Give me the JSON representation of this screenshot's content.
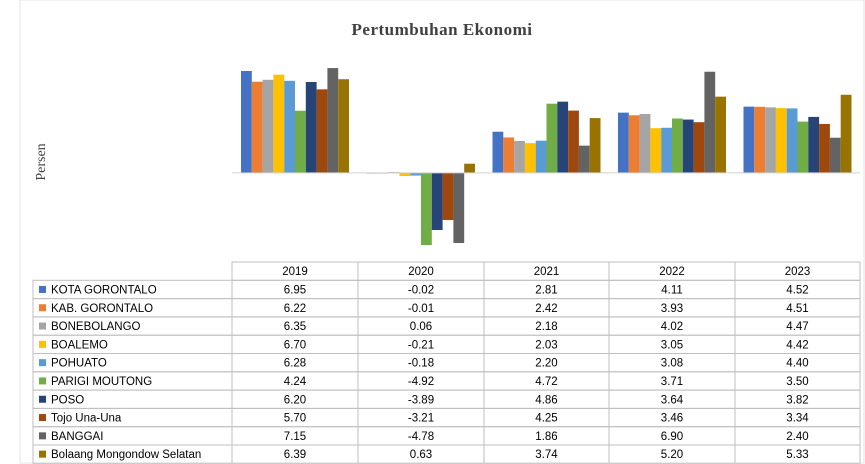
{
  "chart_data": {
    "type": "bar",
    "title": "Pertumbuhan Ekonomi",
    "y_label": "Persen",
    "categories": [
      "2019",
      "2020",
      "2021",
      "2022",
      "2023"
    ],
    "ylim": [
      -5.8,
      7.7
    ],
    "series": [
      {
        "name": "KOTA GORONTALO",
        "color": "#4472c4",
        "values": [
          6.95,
          -0.02,
          2.81,
          4.11,
          4.52
        ],
        "value_labels": [
          "6.95",
          "-0.02",
          "2.81",
          "4.11",
          "4.52"
        ]
      },
      {
        "name": "KAB. GORONTALO",
        "color": "#ed7d31",
        "values": [
          6.22,
          -0.01,
          2.42,
          3.93,
          4.51
        ],
        "value_labels": [
          "6.22",
          "-0.01",
          "2.42",
          "3.93",
          "4.51"
        ]
      },
      {
        "name": "BONEBOLANGO",
        "color": "#a5a5a5",
        "values": [
          6.35,
          0.06,
          2.18,
          4.02,
          4.47
        ],
        "value_labels": [
          "6.35",
          "0.06",
          "2.18",
          "4.02",
          "4.47"
        ]
      },
      {
        "name": "BOALEMO",
        "color": "#ffc000",
        "values": [
          6.7,
          -0.21,
          2.03,
          3.05,
          4.42
        ],
        "value_labels": [
          "6.70",
          "-0.21",
          "2.03",
          "3.05",
          "4.42"
        ]
      },
      {
        "name": "POHUATO",
        "color": "#5b9bd5",
        "values": [
          6.28,
          -0.18,
          2.2,
          3.08,
          4.4
        ],
        "value_labels": [
          "6.28",
          "-0.18",
          "2.20",
          "3.08",
          "4.40"
        ]
      },
      {
        "name": "PARIGI MOUTONG",
        "color": "#70ad47",
        "values": [
          4.24,
          -4.92,
          4.72,
          3.71,
          3.5
        ],
        "value_labels": [
          "4.24",
          "-4.92",
          "4.72",
          "3.71",
          "3.50"
        ]
      },
      {
        "name": "POSO",
        "color": "#264478",
        "values": [
          6.2,
          -3.89,
          4.86,
          3.64,
          3.82
        ],
        "value_labels": [
          "6.20",
          "-3.89",
          "4.86",
          "3.64",
          "3.82"
        ]
      },
      {
        "name": "Tojo Una-Una",
        "color": "#9e480e",
        "values": [
          5.7,
          -3.21,
          4.25,
          3.46,
          3.34
        ],
        "value_labels": [
          "5.70",
          "-3.21",
          "4.25",
          "3.46",
          "3.34"
        ]
      },
      {
        "name": "BANGGAI",
        "color": "#636363",
        "values": [
          7.15,
          -4.78,
          1.86,
          6.9,
          2.4
        ],
        "value_labels": [
          "7.15",
          "-4.78",
          "1.86",
          "6.90",
          "2.40"
        ]
      },
      {
        "name": "Bolaang Mongondow Selatan",
        "color": "#997300",
        "values": [
          6.39,
          0.63,
          3.74,
          5.2,
          5.33
        ],
        "value_labels": [
          "6.39",
          "0.63",
          "3.74",
          "5.20",
          "5.33"
        ]
      }
    ]
  }
}
